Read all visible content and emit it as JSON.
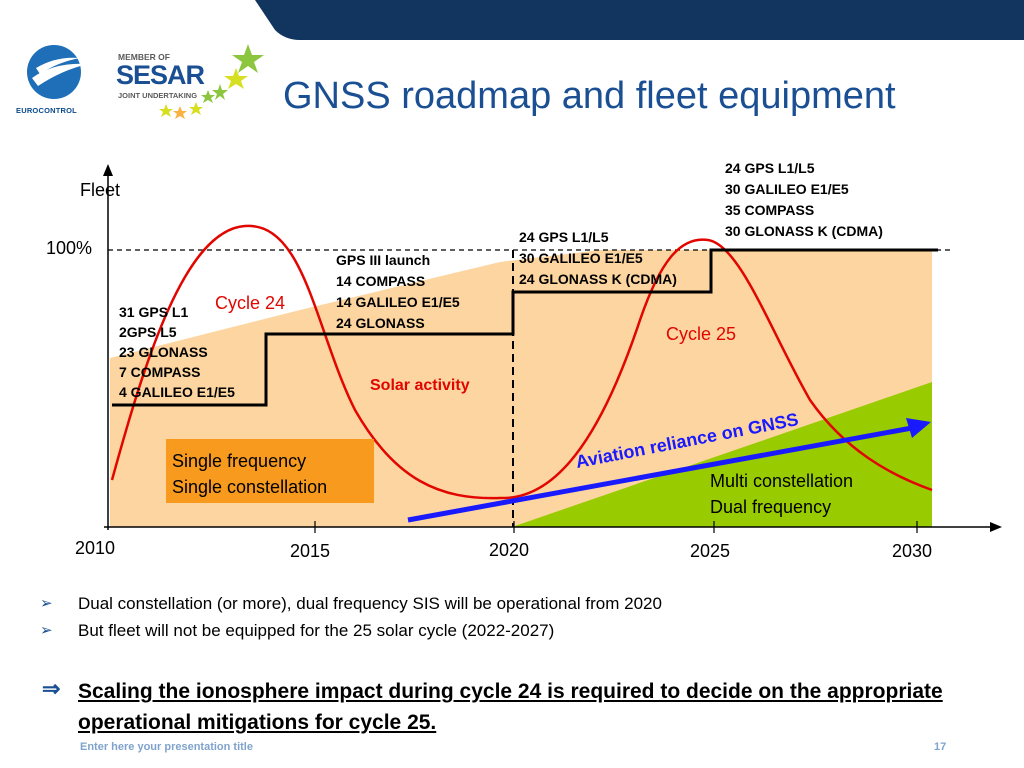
{
  "header": {
    "title": "GNSS roadmap and fleet equipment",
    "logo_eurocontrol": "EUROCONTROL",
    "sesar_member": "MEMBER OF",
    "sesar_name": "SESAR",
    "sesar_sub": "JOINT UNDERTAKING"
  },
  "chart": {
    "y_label": "Fleet",
    "y_100": "100%",
    "x_ticks": [
      "2010",
      "2015",
      "2020",
      "2025",
      "2030"
    ],
    "step_labels": [
      [
        "31 GPS L1",
        "2GPS L5",
        "23 GLONASS",
        "7 COMPASS",
        "4 GALILEO E1/E5"
      ],
      [
        "GPS III launch",
        "14 COMPASS",
        "14 GALILEO E1/E5",
        "24 GLONASS"
      ],
      [
        "24 GPS L1/L5",
        "30 GALILEO E1/E5",
        "24 GLONASS K (CDMA)"
      ],
      [
        "24 GPS L1/L5",
        "30 GALILEO E1/E5",
        "35 COMPASS",
        "30 GLONASS K (CDMA)"
      ]
    ],
    "cycle24": "Cycle 24",
    "cycle25": "Cycle 25",
    "solar": "Solar activity",
    "single_box": [
      "Single frequency",
      "Single constellation"
    ],
    "multi": [
      "Multi constellation",
      "Dual frequency"
    ],
    "reliance": "Aviation reliance on GNSS"
  },
  "bullets": [
    "Dual constellation (or more), dual frequency SIS will be operational from 2020",
    "But fleet will not be equipped for the 25 solar cycle (2022-2027)"
  ],
  "conclusion": "Scaling the ionosphere impact during cycle 24 is required to decide on the appropriate operational mitigations for cycle 25.",
  "footer": {
    "title": "Enter here your presentation title",
    "page": "17"
  },
  "colors": {
    "brand_blue": "#1b4f93",
    "peach": "#fdd5a0",
    "green": "#99cc00",
    "red": "#e10600",
    "orange_box": "#f79a1e",
    "arrow_blue": "#1a1aff"
  }
}
